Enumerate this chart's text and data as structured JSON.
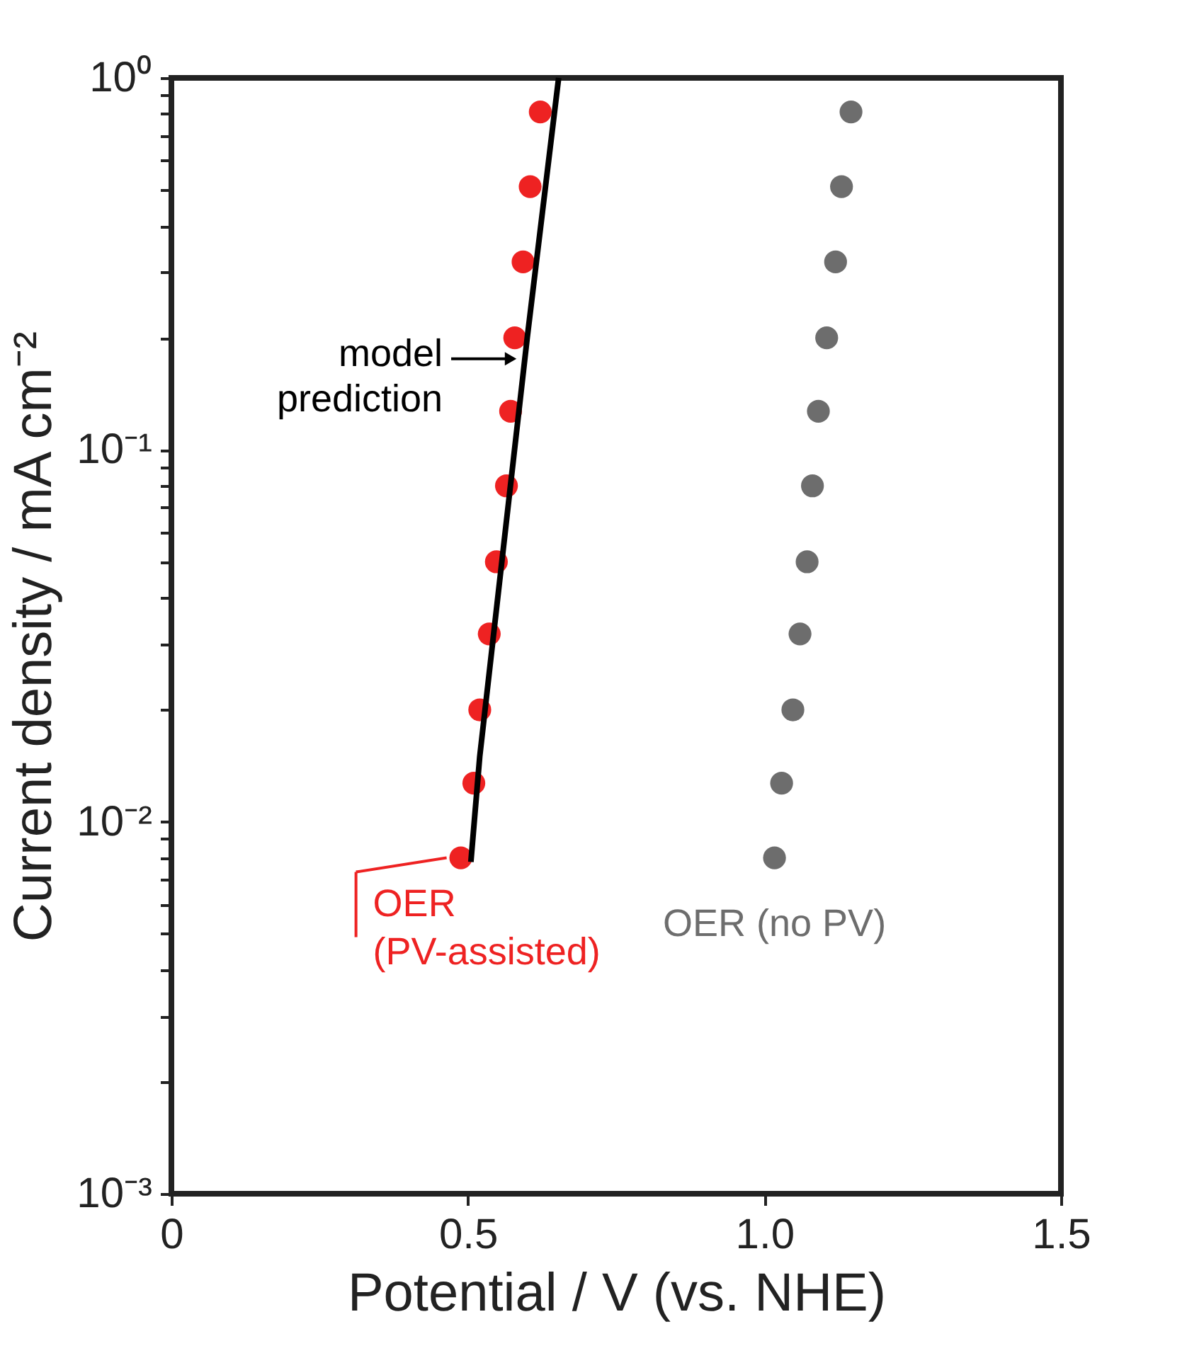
{
  "chart_data": {
    "type": "scatter",
    "xlabel": "Potential / V (vs. NHE)",
    "ylabel": "Current density / mA cm⁻²",
    "log": "y",
    "grid": false,
    "marker": "circle",
    "xlim": [
      0,
      1.5
    ],
    "xticks": [
      {
        "value": 0,
        "label": "0"
      },
      {
        "value": 0.5,
        "label": "0.5"
      },
      {
        "value": 1,
        "label": "1.0"
      },
      {
        "value": 1.5,
        "label": "1.5"
      }
    ],
    "ylim": [
      0.001,
      1
    ],
    "yticks": [
      {
        "value": 0.001,
        "label": "10⁻³"
      },
      {
        "value": 0.002,
        "label": null
      },
      {
        "value": 0.003,
        "label": null
      },
      {
        "value": 0.004,
        "label": null
      },
      {
        "value": 0.005,
        "label": null
      },
      {
        "value": 0.006,
        "label": null
      },
      {
        "value": 0.007,
        "label": null
      },
      {
        "value": 0.008,
        "label": null
      },
      {
        "value": 0.009,
        "label": null
      },
      {
        "value": 0.01,
        "label": "10⁻²"
      },
      {
        "value": 0.02,
        "label": null
      },
      {
        "value": 0.03,
        "label": null
      },
      {
        "value": 0.04,
        "label": null
      },
      {
        "value": 0.05,
        "label": null
      },
      {
        "value": 0.06,
        "label": null
      },
      {
        "value": 0.07,
        "label": null
      },
      {
        "value": 0.08,
        "label": null
      },
      {
        "value": 0.09,
        "label": null
      },
      {
        "value": 0.1,
        "label": "10⁻¹"
      },
      {
        "value": 0.2,
        "label": null
      },
      {
        "value": 0.3,
        "label": null
      },
      {
        "value": 0.4,
        "label": null
      },
      {
        "value": 0.5,
        "label": null
      },
      {
        "value": 0.6,
        "label": null
      },
      {
        "value": 0.7,
        "label": null
      },
      {
        "value": 0.8,
        "label": null
      },
      {
        "value": 0.9,
        "label": null
      },
      {
        "value": 1,
        "label": "10⁰"
      }
    ],
    "series": [
      {
        "name": "OER (PV-assisted)",
        "color": "#ee2222",
        "x": [
          0.488,
          0.51,
          0.52,
          0.536,
          0.548,
          0.565,
          0.572,
          0.579,
          0.593,
          0.605,
          0.622
        ],
        "values": [
          0.008,
          0.0127,
          0.02,
          0.032,
          0.05,
          0.08,
          0.127,
          0.2,
          0.32,
          0.51,
          0.81
        ]
      },
      {
        "name": "OER (no PV)",
        "color": "#6d6d6d",
        "x": [
          1.017,
          1.029,
          1.048,
          1.06,
          1.072,
          1.081,
          1.091,
          1.105,
          1.12,
          1.13,
          1.146
        ],
        "values": [
          0.008,
          0.0127,
          0.02,
          0.032,
          0.05,
          0.08,
          0.127,
          0.2,
          0.32,
          0.51,
          0.81
        ]
      },
      {
        "name": "model prediction",
        "type": "line",
        "color": "#000000",
        "line_style": "solid",
        "marker": "none",
        "x": [
          0.505,
          0.52,
          0.6,
          0.653
        ],
        "values": [
          0.0078,
          0.015,
          0.2,
          1
        ]
      }
    ]
  }
}
